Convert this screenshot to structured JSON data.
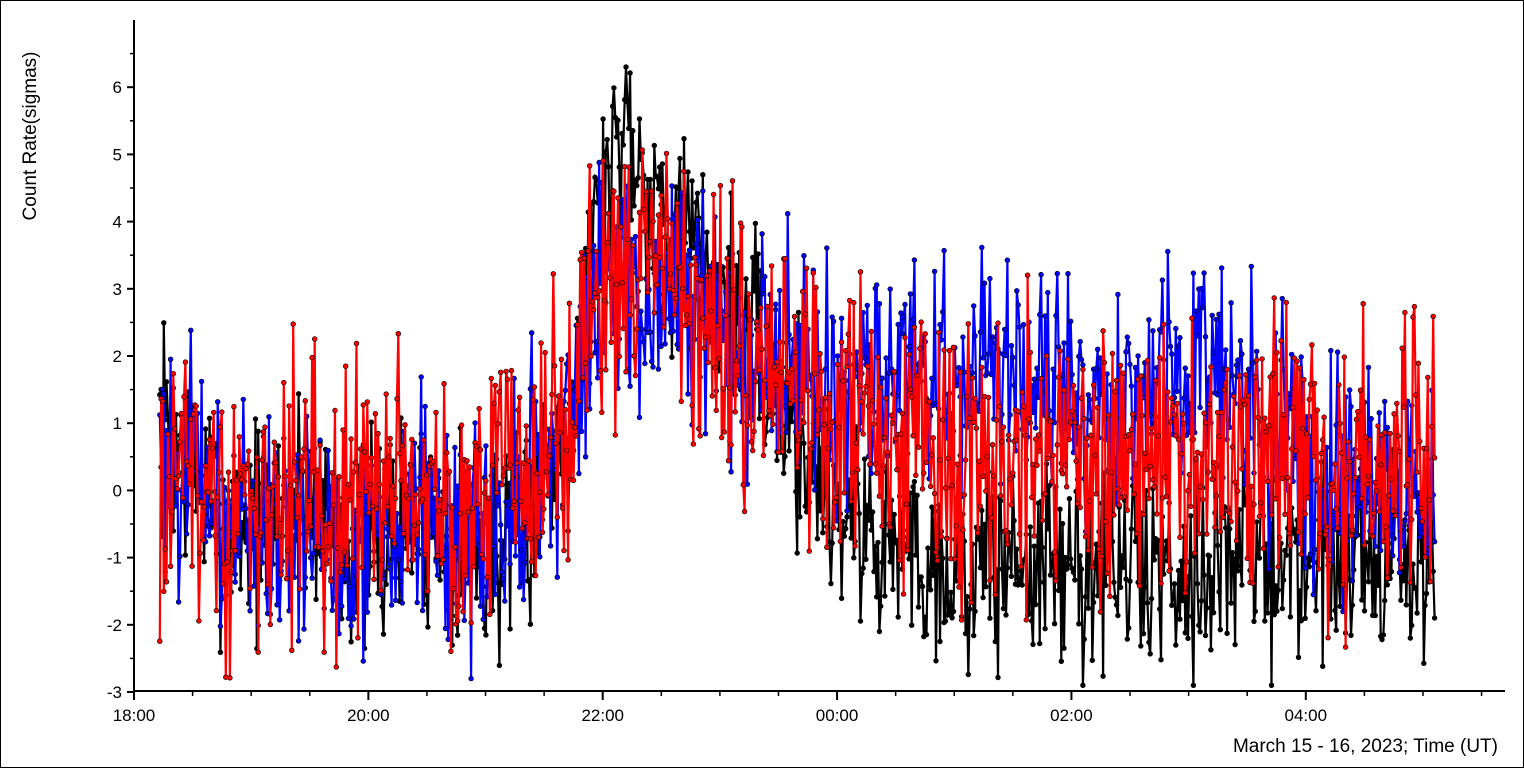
{
  "chart_data": {
    "type": "line",
    "ylabel": "Count Rate(sigmas)",
    "xlabel": "March 15 - 16, 2023; Time (UT)",
    "x_unit": "hours UT from 18:00 March 15",
    "xlim": [
      0.0,
      11.7
    ],
    "ylim": [
      -3,
      7
    ],
    "x_ticks": [
      "18:00",
      "20:00",
      "22:00",
      "00:00",
      "02:00",
      "04:00"
    ],
    "x_tick_values": [
      0,
      2,
      4,
      6,
      8,
      10
    ],
    "y_ticks": [
      "6",
      "5",
      "4",
      "3",
      "2",
      "1",
      "0",
      "-1",
      "-2",
      "-3"
    ],
    "y_tick_values": [
      6,
      5,
      4,
      3,
      2,
      1,
      0,
      -1,
      -2,
      -3
    ],
    "grid": false,
    "legend": "none",
    "series": [
      {
        "color": "#000000",
        "marker": "circle",
        "x": [
          0.22,
          0.5,
          0.75,
          1.0,
          1.25,
          1.5,
          1.75,
          2.0,
          2.25,
          2.5,
          2.75,
          3.0,
          3.25,
          3.5,
          3.75,
          3.9,
          4.0,
          4.1,
          4.2,
          4.3,
          4.4,
          4.5,
          4.6,
          4.75,
          5.0,
          5.25,
          5.5,
          5.75,
          6.0,
          6.25,
          6.5,
          6.75,
          7.0,
          7.25,
          7.5,
          7.75,
          8.0,
          8.25,
          8.5,
          8.75,
          9.0,
          9.25,
          9.5,
          9.75,
          10.0,
          10.25,
          10.5,
          10.75,
          11.1
        ],
        "y": [
          1.0,
          0.3,
          -0.4,
          -0.5,
          -0.3,
          0.0,
          -0.6,
          -0.9,
          -0.6,
          -0.4,
          -0.7,
          -1.0,
          -0.8,
          0.2,
          1.5,
          3.5,
          4.5,
          5.0,
          5.8,
          5.0,
          4.6,
          4.3,
          3.9,
          3.7,
          3.0,
          2.2,
          1.5,
          0.5,
          -0.2,
          -0.6,
          -0.8,
          -1.0,
          -1.1,
          -1.2,
          -1.0,
          -1.1,
          -1.2,
          -1.0,
          -1.2,
          -1.1,
          -1.2,
          -1.0,
          -0.9,
          -1.0,
          -1.1,
          -0.9,
          -0.9,
          -1.0,
          -1.2
        ]
      },
      {
        "color": "#0000ff",
        "marker": "circle",
        "x": [
          0.22,
          0.5,
          0.75,
          1.0,
          1.25,
          1.5,
          1.75,
          2.0,
          2.25,
          2.5,
          2.75,
          3.0,
          3.25,
          3.5,
          3.75,
          3.9,
          4.0,
          4.2,
          4.4,
          4.6,
          4.8,
          5.0,
          5.25,
          5.5,
          5.75,
          6.0,
          6.25,
          6.5,
          6.75,
          7.0,
          7.25,
          7.5,
          7.75,
          8.0,
          8.25,
          8.5,
          8.75,
          9.0,
          9.25,
          9.5,
          9.75,
          10.0,
          10.25,
          10.5,
          10.75,
          11.1
        ],
        "y": [
          0.8,
          0.3,
          -0.5,
          -0.4,
          -0.6,
          -0.5,
          -0.9,
          -0.7,
          -0.3,
          -0.4,
          -0.8,
          -0.5,
          -0.1,
          0.3,
          1.2,
          2.5,
          3.0,
          3.1,
          3.0,
          3.2,
          2.8,
          2.5,
          2.2,
          2.0,
          1.8,
          1.6,
          1.7,
          1.9,
          1.9,
          1.8,
          1.8,
          1.7,
          1.6,
          1.5,
          1.4,
          1.2,
          1.6,
          1.8,
          2.0,
          1.4,
          0.9,
          0.4,
          0.2,
          0.1,
          0.0,
          0.0
        ]
      },
      {
        "color": "#ff0000",
        "marker": "circle",
        "x": [
          0.22,
          0.5,
          0.75,
          1.0,
          1.25,
          1.5,
          1.75,
          2.0,
          2.25,
          2.5,
          2.75,
          3.0,
          3.25,
          3.5,
          3.75,
          3.9,
          4.0,
          4.2,
          4.4,
          4.6,
          4.8,
          5.0,
          5.25,
          5.5,
          5.75,
          6.0,
          6.25,
          6.5,
          6.75,
          7.0,
          7.25,
          7.5,
          7.75,
          8.0,
          8.25,
          8.5,
          8.75,
          9.0,
          9.25,
          9.5,
          9.75,
          10.0,
          10.25,
          10.5,
          10.75,
          11.1
        ],
        "y": [
          0.0,
          0.2,
          -0.4,
          -0.3,
          -0.2,
          0.0,
          -0.5,
          -0.2,
          0.1,
          0.1,
          -0.4,
          -0.1,
          0.3,
          0.6,
          1.3,
          2.7,
          3.2,
          3.4,
          3.6,
          3.3,
          2.8,
          2.4,
          2.0,
          1.6,
          1.3,
          1.1,
          1.0,
          1.0,
          0.9,
          0.8,
          0.8,
          0.7,
          0.8,
          0.7,
          0.7,
          0.6,
          0.5,
          0.6,
          0.5,
          0.4,
          0.5,
          0.4,
          0.5,
          0.3,
          0.4,
          0.6
        ]
      }
    ]
  }
}
